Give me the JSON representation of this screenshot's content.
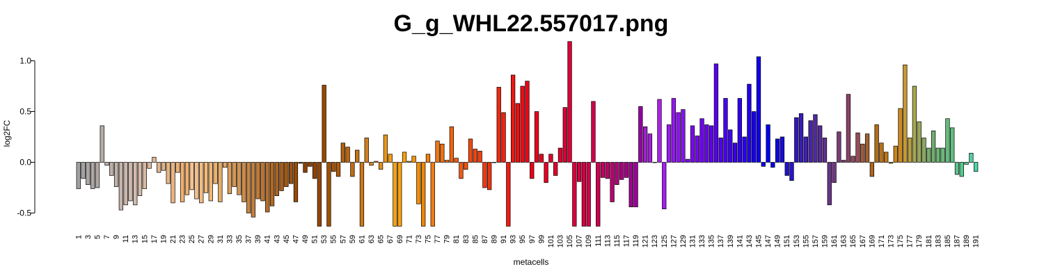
{
  "chart_data": {
    "type": "bar",
    "title": "G_g_WHL22.557017.png",
    "xlabel": "metacells",
    "ylabel": "log2FC",
    "ylim": [
      -0.63,
      1.2
    ],
    "yticks": [
      -0.5,
      0.0,
      0.5,
      1.0
    ],
    "ytick_labels": [
      "-0.5",
      "0.0",
      "0.5",
      "1.0"
    ],
    "grid": false,
    "legend": "none",
    "bar_border_color": "#000000",
    "categories": [
      "1",
      "2",
      "3",
      "4",
      "5",
      "6",
      "7",
      "8",
      "9",
      "10",
      "11",
      "12",
      "13",
      "14",
      "15",
      "16",
      "17",
      "18",
      "19",
      "20",
      "21",
      "22",
      "23",
      "24",
      "25",
      "26",
      "27",
      "28",
      "29",
      "30",
      "31",
      "32",
      "33",
      "34",
      "35",
      "36",
      "37",
      "38",
      "39",
      "40",
      "41",
      "42",
      "43",
      "44",
      "45",
      "46",
      "47",
      "48",
      "49",
      "50",
      "51",
      "52",
      "53",
      "54",
      "55",
      "56",
      "57",
      "58",
      "59",
      "60",
      "61",
      "62",
      "63",
      "64",
      "65",
      "66",
      "67",
      "68",
      "69",
      "70",
      "71",
      "72",
      "73",
      "74",
      "75",
      "76",
      "77",
      "78",
      "79",
      "80",
      "81",
      "82",
      "83",
      "84",
      "85",
      "86",
      "87",
      "88",
      "89",
      "90",
      "91",
      "92",
      "93",
      "94",
      "95",
      "96",
      "97",
      "98",
      "99",
      "100",
      "101",
      "102",
      "103",
      "104",
      "105",
      "106",
      "107",
      "108",
      "109",
      "110",
      "111",
      "112",
      "113",
      "114",
      "115",
      "116",
      "117",
      "118",
      "119",
      "120",
      "121",
      "122",
      "123",
      "124",
      "125",
      "126",
      "127",
      "128",
      "129",
      "130",
      "131",
      "132",
      "133",
      "134",
      "135",
      "136",
      "137",
      "138",
      "139",
      "140",
      "141",
      "142",
      "143",
      "144",
      "145",
      "146",
      "147",
      "148",
      "149",
      "150",
      "151",
      "152",
      "153",
      "154",
      "155",
      "156",
      "157",
      "158",
      "159",
      "160",
      "161",
      "162",
      "163",
      "164",
      "165",
      "166",
      "167",
      "168",
      "169",
      "170",
      "171",
      "172",
      "173",
      "174",
      "175",
      "176",
      "177",
      "178",
      "179",
      "180",
      "181",
      "182",
      "183",
      "184",
      "185",
      "186",
      "187",
      "188",
      "189",
      "190",
      "191"
    ],
    "values": [
      -0.26,
      -0.16,
      -0.22,
      -0.26,
      -0.25,
      0.36,
      -0.03,
      -0.13,
      -0.24,
      -0.47,
      -0.42,
      -0.38,
      -0.42,
      -0.33,
      -0.26,
      -0.06,
      0.05,
      -0.1,
      -0.08,
      -0.21,
      -0.4,
      -0.1,
      -0.39,
      -0.32,
      -0.27,
      -0.36,
      -0.4,
      -0.3,
      -0.38,
      -0.21,
      -0.39,
      -0.05,
      -0.31,
      -0.24,
      -0.32,
      -0.39,
      -0.5,
      -0.54,
      -0.36,
      -0.38,
      -0.49,
      -0.43,
      -0.33,
      -0.28,
      -0.24,
      -0.21,
      -0.39,
      -0.01,
      -0.1,
      -0.04,
      -0.16,
      -0.63,
      0.76,
      -0.63,
      -0.09,
      -0.14,
      0.19,
      0.15,
      -0.14,
      0.12,
      -0.63,
      0.24,
      -0.03,
      0.01,
      -0.07,
      0.27,
      0.08,
      -0.63,
      -0.63,
      0.1,
      0.01,
      0.06,
      -0.41,
      -0.63,
      0.08,
      -0.63,
      0.21,
      0.18,
      0.02,
      0.35,
      0.04,
      -0.16,
      -0.07,
      0.23,
      0.13,
      0.11,
      -0.25,
      -0.27,
      0.0,
      0.74,
      0.49,
      -0.63,
      0.86,
      0.58,
      0.75,
      0.8,
      -0.16,
      0.5,
      0.08,
      -0.2,
      0.08,
      -0.13,
      0.14,
      0.54,
      1.19,
      -0.63,
      -0.19,
      -0.63,
      -0.63,
      0.6,
      -0.63,
      -0.15,
      -0.16,
      -0.39,
      -0.22,
      -0.17,
      -0.15,
      -0.44,
      -0.44,
      0.55,
      0.35,
      0.28,
      0.0,
      0.62,
      -0.46,
      0.37,
      0.63,
      0.49,
      0.52,
      0.03,
      0.36,
      0.26,
      0.43,
      0.37,
      0.36,
      0.97,
      0.24,
      0.63,
      0.32,
      0.19,
      0.63,
      0.25,
      0.77,
      0.5,
      1.04,
      -0.04,
      0.37,
      -0.05,
      0.23,
      0.25,
      -0.13,
      -0.18,
      0.44,
      0.48,
      0.25,
      0.41,
      0.47,
      0.36,
      0.24,
      -0.42,
      -0.2,
      0.3,
      0.02,
      0.67,
      0.06,
      0.29,
      0.18,
      0.28,
      -0.14,
      0.37,
      0.19,
      0.1,
      -0.01,
      0.16,
      0.53,
      0.96,
      0.24,
      0.75,
      0.4,
      0.24,
      0.14,
      0.31,
      0.14,
      0.14,
      0.43,
      0.34,
      -0.12,
      -0.14,
      -0.02,
      0.09,
      -0.09
    ],
    "colors": [
      "#A2A2A2",
      "#A6A4A3",
      "#AAA6A4",
      "#AEA8A5",
      "#B2AAA6",
      "#B6ADA7",
      "#BAAFA8",
      "#BEB1A9",
      "#C2B3AA",
      "#C6B5AB",
      "#CAB7AC",
      "#CEB9AD",
      "#D2BBAE",
      "#D5BAA8",
      "#D8B9A2",
      "#DBB89C",
      "#DEB796",
      "#E1B690",
      "#E4B58A",
      "#E7B484",
      "#EAB37E",
      "#EDB278",
      "#F0B172",
      "#F3B06C",
      "#F4C391",
      "#F3C08A",
      "#F2BD83",
      "#F1BA7C",
      "#F0B775",
      "#EBB16E",
      "#E6AB68",
      "#E1A562",
      "#DC9F5C",
      "#D79956",
      "#D29350",
      "#CD8D4A",
      "#C88744",
      "#C3813E",
      "#BE7B38",
      "#B97532",
      "#B46F2C",
      "#AF6926",
      "#AA6320",
      "#A55D1A",
      "#A05714",
      "#9B510E",
      "#964B08",
      "#914502",
      "#8C4000",
      "#8F4200",
      "#924400",
      "#954600",
      "#984800",
      "#A04F00",
      "#A75404",
      "#AD5A08",
      "#B3600C",
      "#B96610",
      "#BF6C14",
      "#C57218",
      "#CB781C",
      "#D17E1E",
      "#D7841E",
      "#DD8A1E",
      "#E3901C",
      "#E9961A",
      "#EF9C18",
      "#F4A014",
      "#F7A010",
      "#F7A00C",
      "#F59A0A",
      "#F39408",
      "#F18E06",
      "#EF8804",
      "#F08210",
      "#F07C10",
      "#F07610",
      "#F07010",
      "#F06A10",
      "#F06410",
      "#F05E10",
      "#F05810",
      "#F05210",
      "#F04C10",
      "#F04610",
      "#F04010",
      "#F03A10",
      "#F03410",
      "#F02E10",
      "#F02810",
      "#F02210",
      "#F01C10",
      "#EF1610",
      "#EE1012",
      "#ED0A14",
      "#EC0416",
      "#EA0018",
      "#E8001C",
      "#E60020",
      "#E40024",
      "#E20028",
      "#E0002C",
      "#DE0030",
      "#DC0034",
      "#DA0038",
      "#D8003C",
      "#D60040",
      "#D40044",
      "#D20048",
      "#D0004C",
      "#CE0050",
      "#C40060",
      "#BE0068",
      "#B80070",
      "#B20078",
      "#AC0080",
      "#A60088",
      "#A00090",
      "#9A0098",
      "#9400A0",
      "#A020D0",
      "#A420D8",
      "#A820E0",
      "#AC20E8",
      "#A020F0",
      "#9A1CF0",
      "#9418F0",
      "#8E14F0",
      "#8810F0",
      "#820CF0",
      "#7C08F0",
      "#7604F0",
      "#7000F0",
      "#6800F0",
      "#6000F0",
      "#5800F0",
      "#5000F0",
      "#4800F0",
      "#4000F0",
      "#3800F0",
      "#3000F0",
      "#2800F0",
      "#2000F0",
      "#1800F0",
      "#1000F0",
      "#0800F0",
      "#0000F0",
      "#0804E8",
      "#1008E0",
      "#180CD8",
      "#2010D0",
      "#2814C8",
      "#3018C0",
      "#381CB8",
      "#4020B0",
      "#4824A8",
      "#5028A0",
      "#582C98",
      "#603090",
      "#683488",
      "#703880",
      "#783C78",
      "#804070",
      "#884468",
      "#904860",
      "#984C58",
      "#9E5C40",
      "#A46030",
      "#AA6620",
      "#B06C18",
      "#B67218",
      "#BC7818",
      "#C27E18",
      "#C8841C",
      "#CE8A20",
      "#C89830",
      "#B8A040",
      "#A8A850",
      "#98A858",
      "#88A860",
      "#78AC68",
      "#70B070",
      "#6CB474",
      "#68B878",
      "#64BC7C",
      "#60C080",
      "#5CC488",
      "#58C890",
      "#54CC98",
      "#50D0A0",
      "#4CD4A8",
      "#48D8B0",
      "#40DCB8",
      "#38E0C0",
      "#30E4C8",
      "#28E8D0",
      "#20ECD8",
      "#18F0E0"
    ]
  }
}
